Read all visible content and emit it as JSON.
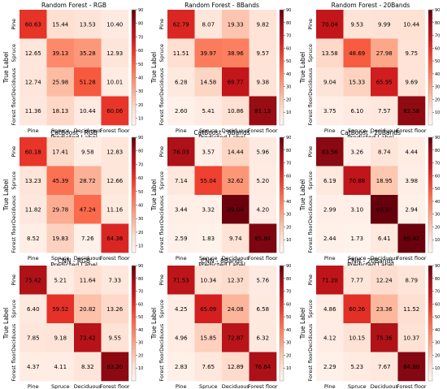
{
  "chart_data": [
    {
      "type": "heatmap",
      "title": "Random Forest - RGB",
      "xlabel": "Predicted Label",
      "ylabel": "True Label",
      "categories": [
        "Pine",
        "Spruce",
        "Deciduous",
        "Forest floor"
      ],
      "values": [
        [
          60.63,
          15.44,
          13.53,
          10.4
        ],
        [
          12.65,
          39.13,
          35.28,
          12.93
        ],
        [
          12.74,
          25.98,
          51.28,
          10.01
        ],
        [
          11.36,
          18.13,
          10.44,
          60.06
        ]
      ],
      "colorbar_ticks": [
        90,
        80,
        70,
        60,
        50,
        40,
        30,
        20,
        10
      ],
      "zlim": [
        5,
        90
      ]
    },
    {
      "type": "heatmap",
      "title": "Random Forest - 8Bands",
      "xlabel": "Predicted Label",
      "ylabel": "True Label",
      "categories": [
        "Pine",
        "Spruce",
        "Deciduous",
        "Forest floor"
      ],
      "values": [
        [
          62.79,
          8.07,
          19.33,
          9.82
        ],
        [
          11.51,
          39.97,
          38.96,
          9.57
        ],
        [
          6.28,
          14.58,
          69.77,
          9.38
        ],
        [
          2.6,
          5.41,
          10.86,
          81.13
        ]
      ],
      "colorbar_ticks": [
        90,
        80,
        70,
        60,
        50,
        40,
        30,
        20,
        10
      ],
      "zlim": [
        0,
        90
      ]
    },
    {
      "type": "heatmap",
      "title": "Random Forest - 20Bands",
      "xlabel": "Predicted Label",
      "ylabel": "True Label",
      "categories": [
        "Pine",
        "Spruce",
        "Deciduous",
        "Forest floor"
      ],
      "values": [
        [
          70.04,
          9.53,
          9.99,
          10.44
        ],
        [
          13.58,
          48.69,
          27.98,
          9.75
        ],
        [
          9.04,
          15.33,
          65.95,
          9.69
        ],
        [
          3.75,
          6.1,
          7.57,
          82.58
        ]
      ],
      "colorbar_ticks": [
        90,
        80,
        70,
        60,
        50,
        40,
        30,
        20,
        10
      ],
      "zlim": [
        0,
        90
      ]
    },
    {
      "type": "heatmap",
      "title": "CatBoost - RGB",
      "xlabel": "Predicted Label",
      "ylabel": "True Label",
      "categories": [
        "Pine",
        "Spruce",
        "Deciduous",
        "Forest floor"
      ],
      "values": [
        [
          60.18,
          17.41,
          9.58,
          12.83
        ],
        [
          13.23,
          45.39,
          28.72,
          12.66
        ],
        [
          11.82,
          29.78,
          47.24,
          11.16
        ],
        [
          8.52,
          19.83,
          7.26,
          64.38
        ]
      ],
      "colorbar_ticks": [
        90,
        80,
        70,
        60,
        50,
        40,
        30,
        20,
        10
      ],
      "zlim": [
        5,
        90
      ]
    },
    {
      "type": "heatmap",
      "title": "CatBoost - 8Bands",
      "xlabel": "Predicted Label",
      "ylabel": "True Label",
      "categories": [
        "Pine",
        "Spruce",
        "Deciduous",
        "Forest floor"
      ],
      "values": [
        [
          76.03,
          3.57,
          14.44,
          5.96
        ],
        [
          7.14,
          55.04,
          32.62,
          5.2
        ],
        [
          3.44,
          3.32,
          89.04,
          4.2
        ],
        [
          2.59,
          1.83,
          9.74,
          85.84
        ]
      ],
      "colorbar_ticks": [
        90,
        80,
        70,
        60,
        50,
        40,
        30,
        20,
        10
      ],
      "zlim": [
        0,
        90
      ]
    },
    {
      "type": "heatmap",
      "title": "CatBoost - 20Bands",
      "xlabel": "Predicted Label",
      "ylabel": "True Label",
      "categories": [
        "Pine",
        "Spruce",
        "Deciduous",
        "Forest floor"
      ],
      "values": [
        [
          83.56,
          3.26,
          8.74,
          4.44
        ],
        [
          6.19,
          70.88,
          18.95,
          3.98
        ],
        [
          2.99,
          3.1,
          90.97,
          2.94
        ],
        [
          2.44,
          1.73,
          6.41,
          89.42
        ]
      ],
      "colorbar_ticks": [
        90,
        80,
        70,
        60,
        50,
        40,
        30,
        20,
        10
      ],
      "zlim": [
        0,
        90
      ]
    },
    {
      "type": "heatmap",
      "title": "CNN - RGB",
      "xlabel": "Predicted Label",
      "ylabel": "True Label",
      "categories": [
        "Pine",
        "Spruce",
        "Deciduous",
        "Forest floor"
      ],
      "values": [
        [
          75.42,
          5.21,
          11.64,
          7.33
        ],
        [
          6.4,
          59.52,
          20.82,
          13.26
        ],
        [
          7.85,
          9.18,
          73.42,
          9.55
        ],
        [
          4.37,
          4.11,
          8.32,
          83.2
        ]
      ],
      "colorbar_ticks": [
        90,
        80,
        70,
        60,
        50,
        40,
        30,
        20,
        10
      ],
      "zlim": [
        0,
        90
      ]
    },
    {
      "type": "heatmap",
      "title": "CNN - 8Bands",
      "xlabel": "Predicted Label",
      "ylabel": "True Label",
      "categories": [
        "Pine",
        "Spruce",
        "Deciduous",
        "Forest floor"
      ],
      "values": [
        [
          71.53,
          10.34,
          12.37,
          5.76
        ],
        [
          4.25,
          65.09,
          24.08,
          6.58
        ],
        [
          4.96,
          15.85,
          72.87,
          6.32
        ],
        [
          2.83,
          7.65,
          12.89,
          76.64
        ]
      ],
      "colorbar_ticks": [
        90,
        80,
        70,
        60,
        50,
        40,
        30,
        20,
        10
      ],
      "zlim": [
        0,
        90
      ]
    },
    {
      "type": "heatmap",
      "title": "CNN - 20Bands",
      "xlabel": "Predicted Label",
      "ylabel": "True Label",
      "categories": [
        "Pine",
        "Spruce",
        "Deciduous",
        "Forest floor"
      ],
      "values": [
        [
          71.2,
          7.77,
          12.24,
          8.79
        ],
        [
          4.86,
          60.26,
          23.36,
          11.52
        ],
        [
          4.12,
          10.15,
          75.36,
          10.37
        ],
        [
          2.29,
          5.23,
          7.67,
          84.8
        ]
      ],
      "colorbar_ticks": [
        90,
        80,
        70,
        60,
        50,
        40,
        30,
        20,
        10
      ],
      "zlim": [
        0,
        90
      ]
    }
  ],
  "colormap": "Reds",
  "colors": {
    "low": "#fff5f0",
    "high": "#67000d",
    "frame": "#999999"
  }
}
